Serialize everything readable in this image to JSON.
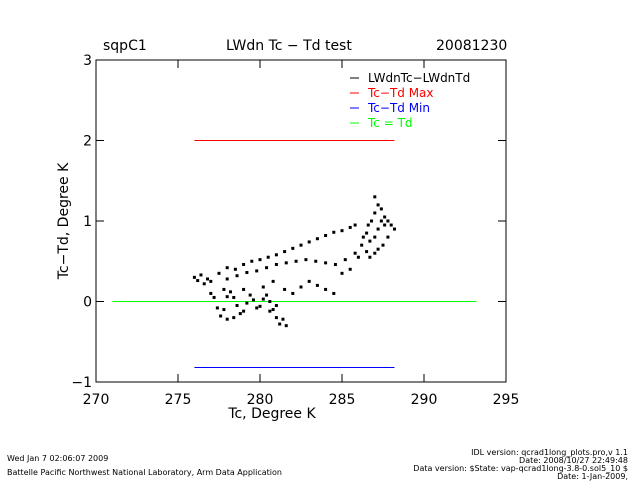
{
  "header": {
    "site": "sqpC1",
    "title": "LWdn Tc − Td test",
    "date": "20081230"
  },
  "footer": {
    "run_time": "Wed Jan  7 02:06:07 2009",
    "lab": "Battelle Pacific Northwest National Laboratory, Arm Data Application",
    "idl_version": "IDL version: qcrad1long_plots.pro,v 1.1",
    "idl_date": "Date: 2008/10/27 22:49:48",
    "data_version": "Data version: $State: vap-qcrad1long-3.8-0.sol5_10 $",
    "data_date": "Date: 1-Jan-2009,"
  },
  "chart_data": {
    "type": "scatter",
    "title": "LWdn Tc − Td test",
    "xlabel": "Tc, Degree K",
    "ylabel": "Tc−Td, Degree K",
    "xlim": [
      270,
      295
    ],
    "ylim": [
      -1,
      3
    ],
    "xticks": [
      270,
      275,
      280,
      285,
      290,
      295
    ],
    "yticks": [
      -1,
      0,
      1,
      2,
      3
    ],
    "grid": false,
    "legend_position": "top-right",
    "colors": {
      "data": "#000000",
      "max": "#ff0000",
      "min": "#0000ff",
      "zero": "#00ff00",
      "axes": "#000000"
    },
    "series": [
      {
        "name": "LWdnTc−LWdnTd",
        "type": "scatter",
        "points": [
          [
            276.0,
            0.3
          ],
          [
            276.2,
            0.26
          ],
          [
            276.4,
            0.33
          ],
          [
            276.6,
            0.22
          ],
          [
            276.8,
            0.28
          ],
          [
            277.0,
            0.25
          ],
          [
            277.0,
            0.1
          ],
          [
            277.2,
            0.05
          ],
          [
            277.4,
            -0.08
          ],
          [
            277.6,
            -0.18
          ],
          [
            277.8,
            -0.1
          ],
          [
            278.0,
            0.06
          ],
          [
            278.2,
            0.12
          ],
          [
            278.4,
            0.05
          ],
          [
            278.6,
            -0.05
          ],
          [
            278.8,
            -0.15
          ],
          [
            279.0,
            -0.12
          ],
          [
            279.2,
            -0.02
          ],
          [
            279.4,
            0.08
          ],
          [
            279.6,
            0.02
          ],
          [
            279.8,
            -0.08
          ],
          [
            280.0,
            -0.06
          ],
          [
            280.2,
            0.03
          ],
          [
            280.4,
            0.08
          ],
          [
            280.6,
            0.0
          ],
          [
            280.8,
            -0.1
          ],
          [
            281.0,
            -0.2
          ],
          [
            281.2,
            -0.28
          ],
          [
            281.4,
            -0.22
          ],
          [
            281.6,
            -0.3
          ],
          [
            281.0,
            -0.05
          ],
          [
            280.6,
            -0.12
          ],
          [
            278.0,
            -0.22
          ],
          [
            278.4,
            -0.2
          ],
          [
            277.8,
            0.15
          ],
          [
            279.0,
            0.15
          ],
          [
            277.5,
            0.35
          ],
          [
            278.0,
            0.42
          ],
          [
            278.5,
            0.4
          ],
          [
            279.0,
            0.46
          ],
          [
            279.5,
            0.5
          ],
          [
            280.0,
            0.52
          ],
          [
            280.5,
            0.55
          ],
          [
            281.0,
            0.58
          ],
          [
            281.5,
            0.62
          ],
          [
            282.0,
            0.66
          ],
          [
            282.5,
            0.7
          ],
          [
            283.0,
            0.74
          ],
          [
            283.5,
            0.78
          ],
          [
            284.0,
            0.82
          ],
          [
            284.5,
            0.86
          ],
          [
            285.0,
            0.88
          ],
          [
            285.5,
            0.92
          ],
          [
            285.8,
            0.95
          ],
          [
            278.0,
            0.28
          ],
          [
            278.6,
            0.32
          ],
          [
            279.2,
            0.36
          ],
          [
            279.8,
            0.38
          ],
          [
            280.4,
            0.42
          ],
          [
            281.0,
            0.46
          ],
          [
            281.6,
            0.48
          ],
          [
            282.2,
            0.5
          ],
          [
            282.8,
            0.52
          ],
          [
            283.4,
            0.5
          ],
          [
            284.0,
            0.48
          ],
          [
            284.6,
            0.46
          ],
          [
            285.2,
            0.52
          ],
          [
            285.8,
            0.6
          ],
          [
            286.2,
            0.7
          ],
          [
            283.5,
            0.2
          ],
          [
            284.0,
            0.15
          ],
          [
            284.5,
            0.1
          ],
          [
            283.0,
            0.25
          ],
          [
            282.5,
            0.18
          ],
          [
            282.0,
            0.1
          ],
          [
            281.5,
            0.15
          ],
          [
            280.8,
            0.25
          ],
          [
            280.2,
            0.18
          ],
          [
            285.0,
            0.35
          ],
          [
            285.5,
            0.4
          ],
          [
            286.0,
            0.55
          ],
          [
            286.3,
            0.8
          ],
          [
            286.6,
            0.95
          ],
          [
            286.8,
            1.0
          ],
          [
            286.5,
            0.85
          ],
          [
            286.7,
            0.75
          ],
          [
            287.0,
            0.8
          ],
          [
            287.2,
            0.9
          ],
          [
            287.4,
            1.0
          ],
          [
            287.6,
            1.05
          ],
          [
            287.0,
            1.1
          ],
          [
            287.2,
            1.2
          ],
          [
            287.0,
            1.3
          ],
          [
            287.4,
            1.15
          ],
          [
            287.6,
            0.95
          ],
          [
            287.8,
            1.0
          ],
          [
            288.0,
            0.95
          ],
          [
            288.2,
            0.9
          ],
          [
            287.8,
            0.8
          ],
          [
            287.5,
            0.7
          ],
          [
            287.2,
            0.65
          ],
          [
            287.0,
            0.6
          ],
          [
            286.7,
            0.55
          ],
          [
            286.5,
            0.62
          ]
        ]
      },
      {
        "name": "Tc−Td Max",
        "type": "line",
        "x": [
          276,
          288.2
        ],
        "y": [
          2.0,
          2.0
        ]
      },
      {
        "name": "Tc−Td Min",
        "type": "line",
        "x": [
          276,
          288.2
        ],
        "y": [
          -0.82,
          -0.82
        ]
      },
      {
        "name": "Tc = Td",
        "type": "line",
        "x": [
          271,
          293.2
        ],
        "y": [
          0.0,
          0.0
        ]
      }
    ]
  }
}
